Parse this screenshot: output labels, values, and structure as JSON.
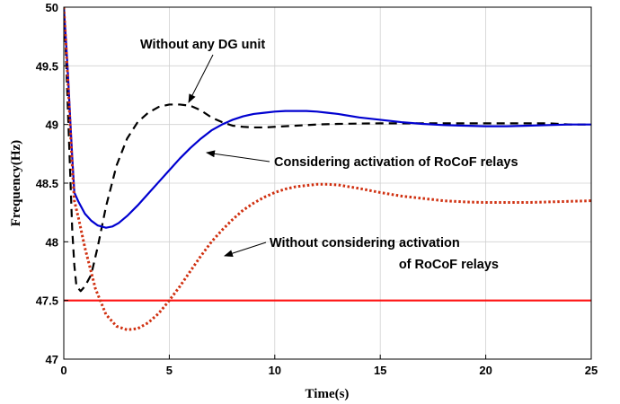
{
  "chart_data": {
    "type": "line",
    "title": "",
    "xlabel": "Time(s)",
    "ylabel": "Frequency(Hz)",
    "xlim": [
      0,
      25
    ],
    "ylim": [
      47,
      50
    ],
    "xticks": [
      0,
      5,
      10,
      15,
      20,
      25
    ],
    "yticks": [
      47,
      47.5,
      48,
      48.5,
      49,
      49.5,
      50
    ],
    "xtick_labels": [
      "0",
      "5",
      "10",
      "15",
      "20",
      "25"
    ],
    "ytick_labels": [
      "47",
      "47.5",
      "48",
      "48.5",
      "49",
      "49.5",
      "50"
    ],
    "grid": true,
    "series": [
      {
        "style": "dashed",
        "color": "#000000",
        "x": [
          0,
          0.1,
          0.2,
          0.3,
          0.4,
          0.5,
          0.6,
          0.8,
          1.0,
          1.3,
          1.6,
          2.0,
          2.5,
          3.0,
          3.5,
          4.0,
          4.5,
          5.0,
          5.5,
          6.0,
          6.5,
          7.0,
          7.5,
          8.0,
          8.5,
          9.0,
          9.5,
          10,
          11,
          12,
          13,
          14,
          15,
          16,
          17,
          18,
          19,
          20,
          21,
          22,
          23,
          24,
          25
        ],
        "y": [
          50.0,
          49.6,
          49.1,
          48.6,
          48.1,
          47.8,
          47.62,
          47.58,
          47.62,
          47.72,
          47.95,
          48.3,
          48.65,
          48.88,
          49.02,
          49.1,
          49.15,
          49.17,
          49.17,
          49.16,
          49.12,
          49.06,
          49.02,
          48.99,
          48.98,
          48.975,
          48.975,
          48.98,
          48.99,
          49.0,
          49.005,
          49.008,
          49.01,
          49.01,
          49.01,
          49.01,
          49.01,
          49.01,
          49.01,
          49.01,
          49.01,
          49.0,
          49.0
        ]
      },
      {
        "style": "solid",
        "color": "#0000d0",
        "x": [
          0,
          0.1,
          0.2,
          0.3,
          0.4,
          0.5,
          0.7,
          1.0,
          1.3,
          1.6,
          2.0,
          2.3,
          2.6,
          3.0,
          3.5,
          4.0,
          4.5,
          5.0,
          5.5,
          6.0,
          6.5,
          7.0,
          7.5,
          8.0,
          8.5,
          9.0,
          9.5,
          10,
          10.5,
          11,
          11.5,
          12,
          12.5,
          13,
          14,
          15,
          16,
          17,
          18,
          19,
          20,
          21,
          22,
          23,
          24,
          25
        ],
        "y": [
          50.0,
          49.72,
          49.42,
          49.06,
          48.72,
          48.42,
          48.34,
          48.24,
          48.18,
          48.14,
          48.12,
          48.13,
          48.16,
          48.22,
          48.31,
          48.41,
          48.51,
          48.61,
          48.71,
          48.8,
          48.88,
          48.95,
          49.0,
          49.04,
          49.07,
          49.09,
          49.1,
          49.11,
          49.115,
          49.115,
          49.115,
          49.11,
          49.1,
          49.09,
          49.06,
          49.04,
          49.02,
          49.005,
          48.995,
          48.99,
          48.985,
          48.985,
          48.99,
          48.995,
          49.0,
          49.0
        ]
      },
      {
        "style": "dotted",
        "color": "#d03010",
        "x": [
          0,
          0.1,
          0.2,
          0.3,
          0.4,
          0.5,
          0.7,
          1.0,
          1.5,
          2.0,
          2.5,
          3.0,
          3.5,
          4.0,
          4.5,
          5.0,
          5.5,
          6.0,
          6.5,
          7.0,
          7.5,
          8.0,
          8.5,
          9.0,
          9.5,
          10,
          10.5,
          11,
          11.5,
          12,
          12.5,
          13,
          13.5,
          14,
          15,
          16,
          17,
          18,
          19,
          20,
          21,
          22,
          23,
          24,
          25
        ],
        "y": [
          50.0,
          49.7,
          49.35,
          49.0,
          48.65,
          48.35,
          48.2,
          47.95,
          47.6,
          47.38,
          47.28,
          47.25,
          47.26,
          47.31,
          47.39,
          47.5,
          47.62,
          47.75,
          47.88,
          48.0,
          48.1,
          48.19,
          48.27,
          48.33,
          48.38,
          48.42,
          48.45,
          48.47,
          48.48,
          48.49,
          48.49,
          48.485,
          48.47,
          48.455,
          48.42,
          48.39,
          48.37,
          48.35,
          48.34,
          48.335,
          48.335,
          48.335,
          48.34,
          48.345,
          48.35
        ]
      },
      {
        "style": "solid",
        "color": "#ff1010",
        "x": [
          0,
          25
        ],
        "y": [
          47.5,
          47.5
        ]
      }
    ],
    "annotations": [
      {
        "text": "Without any DG unit",
        "arrow_to": [
          5.8,
          49.16
        ]
      },
      {
        "text": "Considering activation of RoCoF relays",
        "arrow_to": [
          6.8,
          48.86
        ]
      },
      {
        "text": "Without considering activation",
        "arrow_to": [
          7.5,
          48.09
        ]
      },
      {
        "text": "of RoCoF relays"
      }
    ]
  }
}
